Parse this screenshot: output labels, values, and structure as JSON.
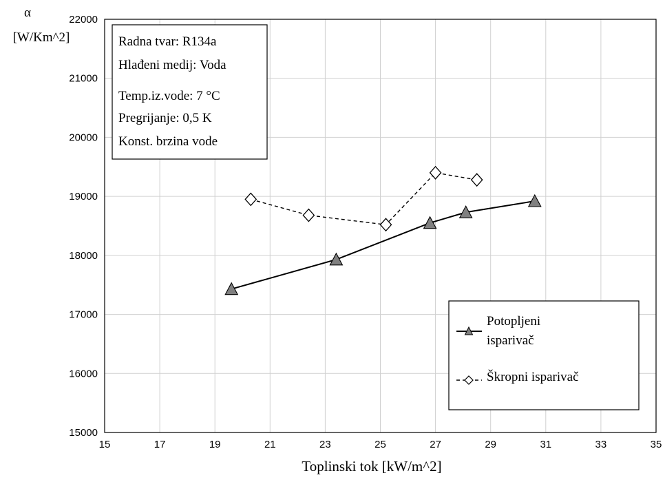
{
  "chart_data": {
    "type": "line",
    "ylabel": "α",
    "ylabel_unit": "[W/Km^2]",
    "xlabel": "Toplinski tok [kW/m^2]",
    "xlim": [
      15,
      35
    ],
    "ylim": [
      15000,
      22000
    ],
    "x_ticks": [
      "15",
      "17",
      "19",
      "21",
      "23",
      "25",
      "27",
      "29",
      "31",
      "33",
      "35"
    ],
    "y_ticks": [
      "15000",
      "16000",
      "17000",
      "18000",
      "19000",
      "20000",
      "21000",
      "22000"
    ],
    "grid": true,
    "legend_position": "lower-right",
    "info_box": [
      "Radna tvar: R134a",
      "Hlađeni medij: Voda",
      "Temp.iz.vode: 7 °C",
      "Pregrijanje: 0,5 K",
      "Konst. brzina vode"
    ],
    "series": [
      {
        "name_lines": [
          "Potopljeni",
          "isparivač"
        ],
        "marker": "triangle",
        "line_style": "solid",
        "color": "#808080",
        "x": [
          19.6,
          23.4,
          26.8,
          28.1,
          30.6
        ],
        "y": [
          17430,
          17930,
          18550,
          18730,
          18920
        ]
      },
      {
        "name_lines": [
          "Škropni isparivač"
        ],
        "marker": "diamond",
        "line_style": "dashed",
        "color": "#ffffff",
        "x": [
          20.3,
          22.4,
          25.2,
          27.0,
          28.5
        ],
        "y": [
          18950,
          18680,
          18520,
          19400,
          19280
        ]
      }
    ]
  }
}
